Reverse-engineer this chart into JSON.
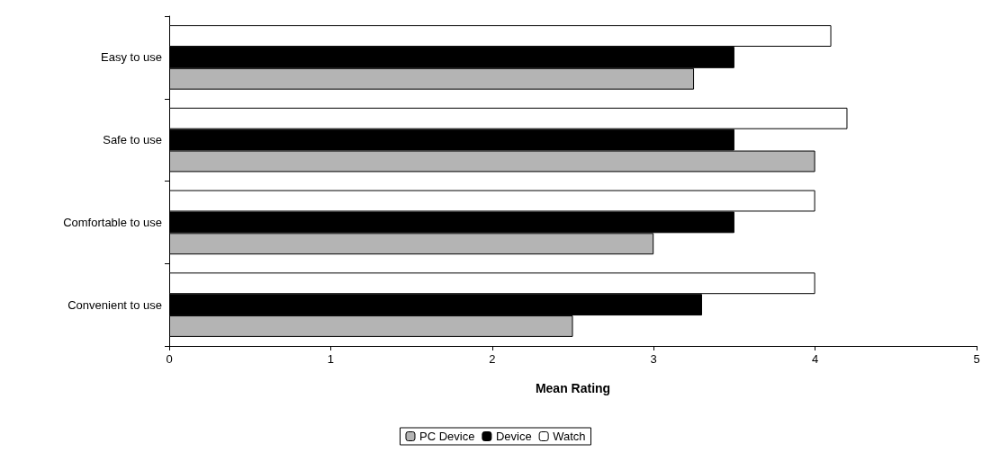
{
  "chart_data": {
    "type": "bar",
    "orientation": "horizontal",
    "xlabel": "Mean Rating",
    "categories": [
      "Easy to use",
      "Safe to use",
      "Comfortable to use",
      "Convenient to use"
    ],
    "series": [
      {
        "name": "PC Device",
        "color": "#b4b4b4",
        "values": [
          3.25,
          4.0,
          3.0,
          2.5
        ]
      },
      {
        "name": "Device",
        "color": "#000000",
        "values": [
          3.5,
          3.5,
          3.5,
          3.3
        ]
      },
      {
        "name": "Watch",
        "color": "#ffffff",
        "values": [
          4.1,
          4.2,
          4.0,
          4.0
        ]
      }
    ],
    "xlim": [
      0,
      5
    ],
    "xticks": [
      0,
      1,
      2,
      3,
      4,
      5
    ],
    "grid": false,
    "legend": "bottom"
  }
}
